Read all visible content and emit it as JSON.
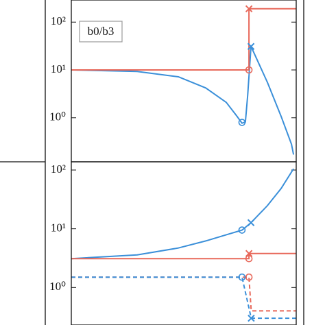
{
  "chart_data": [
    {
      "type": "line",
      "annotation": "b0/b3",
      "log_y": true,
      "ylim": [
        0.12,
        290
      ],
      "yticks": [
        {
          "value": 1,
          "label": "10⁰"
        },
        {
          "value": 10,
          "label": "10¹"
        },
        {
          "value": 100,
          "label": "10²"
        }
      ],
      "xlim": [
        0,
        1
      ],
      "series": [
        {
          "color": "#3a8fd9",
          "dash": false,
          "x": [
            0,
            0.293,
            0.476,
            0.598,
            0.689,
            0.735,
            0.759,
            0.774,
            0.784,
            0.799,
            0.872,
            0.933,
            0.979,
            0.988
          ],
          "values": [
            10,
            9.3,
            7.2,
            4.2,
            2.1,
            1.1,
            0.77,
            0.82,
            2.9,
            31,
            5.5,
            1.07,
            0.28,
            0.17
          ]
        },
        {
          "color": "#e8685a",
          "dash": false,
          "x": [
            0,
            0.79,
            0.79,
            1
          ],
          "values": [
            10,
            10,
            190,
            190
          ]
        }
      ],
      "markers": [
        {
          "symbol": "o",
          "color": "#3a8fd9",
          "x": 0.759,
          "y": 0.8
        },
        {
          "symbol": "x",
          "color": "#3a8fd9",
          "x": 0.799,
          "y": 31
        },
        {
          "symbol": "o",
          "color": "#e8685a",
          "x": 0.79,
          "y": 10
        },
        {
          "symbol": "x",
          "color": "#e8685a",
          "x": 0.79,
          "y": 190
        }
      ]
    },
    {
      "type": "line",
      "log_y": true,
      "ylim": [
        0.23,
        138
      ],
      "yticks": [
        {
          "value": 1,
          "label": "10⁰"
        },
        {
          "value": 10,
          "label": "10¹"
        },
        {
          "value": 100,
          "label": "10²"
        }
      ],
      "xlim": [
        0,
        1
      ],
      "series": [
        {
          "color": "#3a8fd9",
          "dash": false,
          "x": [
            0,
            0.293,
            0.476,
            0.598,
            0.689,
            0.759,
            0.799,
            0.872,
            0.933,
            0.988
          ],
          "values": [
            3.1,
            3.6,
            4.7,
            6.2,
            7.9,
            9.5,
            12.7,
            24.8,
            48.5,
            105
          ]
        },
        {
          "color": "#e8685a",
          "dash": false,
          "x": [
            0,
            0.79,
            0.79,
            1
          ],
          "values": [
            3.1,
            3.1,
            3.8,
            3.8
          ]
        },
        {
          "color": "#e8685a",
          "dash": true,
          "x": [
            0,
            0.79,
            0.8,
            1
          ],
          "values": [
            1.5,
            1.5,
            0.4,
            0.4
          ]
        },
        {
          "color": "#3a8fd9",
          "dash": true,
          "x": [
            0,
            0.759,
            0.8,
            1
          ],
          "values": [
            1.5,
            1.5,
            0.3,
            0.3
          ]
        }
      ],
      "markers": [
        {
          "symbol": "o",
          "color": "#3a8fd9",
          "x": 0.759,
          "y": 9.5
        },
        {
          "symbol": "x",
          "color": "#3a8fd9",
          "x": 0.799,
          "y": 12.7
        },
        {
          "symbol": "o",
          "color": "#e8685a",
          "x": 0.79,
          "y": 3.1
        },
        {
          "symbol": "x",
          "color": "#e8685a",
          "x": 0.79,
          "y": 3.8
        },
        {
          "symbol": "o",
          "color": "#e8685a",
          "x": 0.79,
          "y": 1.5
        },
        {
          "symbol": "o",
          "color": "#3a8fd9",
          "x": 0.759,
          "y": 1.5
        },
        {
          "symbol": "x",
          "color": "#3a8fd9",
          "x": 0.8,
          "y": 0.3
        }
      ]
    }
  ]
}
